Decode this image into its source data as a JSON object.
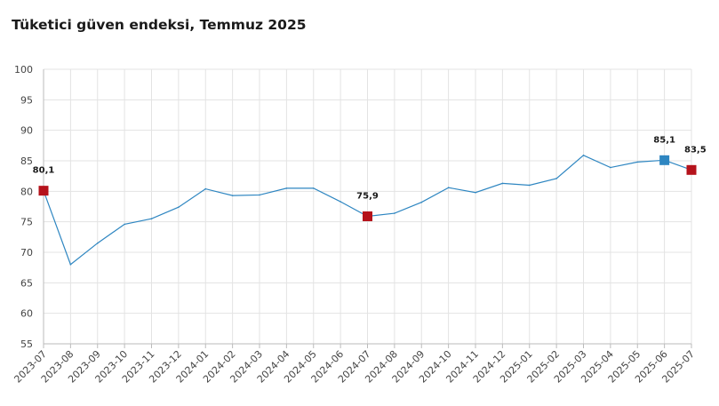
{
  "chart_data": {
    "type": "line",
    "title": "Tüketici güven endeksi, Temmuz 2025",
    "xlabel": "",
    "ylabel": "",
    "ylim": [
      55,
      100
    ],
    "yticks": [
      55,
      60,
      65,
      70,
      75,
      80,
      85,
      90,
      95,
      100
    ],
    "grid": true,
    "legend": "none",
    "categories": [
      "2023-07",
      "2023-08",
      "2023-09",
      "2023-10",
      "2023-11",
      "2023-12",
      "2024-01",
      "2024-02",
      "2024-03",
      "2024-04",
      "2024-05",
      "2024-06",
      "2024-07",
      "2024-08",
      "2024-09",
      "2024-10",
      "2024-11",
      "2024-12",
      "2025-01",
      "2025-02",
      "2025-03",
      "2025-04",
      "2025-05",
      "2025-06",
      "2025-07"
    ],
    "series": [
      {
        "values": [
          80.1,
          68.0,
          71.5,
          74.6,
          75.5,
          77.4,
          80.4,
          79.3,
          79.4,
          80.5,
          80.5,
          78.3,
          75.9,
          76.4,
          78.2,
          80.6,
          79.8,
          81.3,
          81.0,
          82.1,
          85.9,
          83.9,
          84.8,
          85.1,
          83.5
        ],
        "color": "#2e86c1"
      }
    ],
    "highlights": [
      {
        "index": 0,
        "label": "80,1",
        "color": "#b5121b"
      },
      {
        "index": 12,
        "label": "75,9",
        "color": "#b5121b"
      },
      {
        "index": 23,
        "label": "85,1",
        "color": "#2e86c1"
      },
      {
        "index": 24,
        "label": "83,5",
        "color": "#b5121b"
      }
    ],
    "colors": {
      "grid": "#e3e3e3",
      "axis": "#bbbbbb",
      "line": "#2e86c1"
    }
  }
}
